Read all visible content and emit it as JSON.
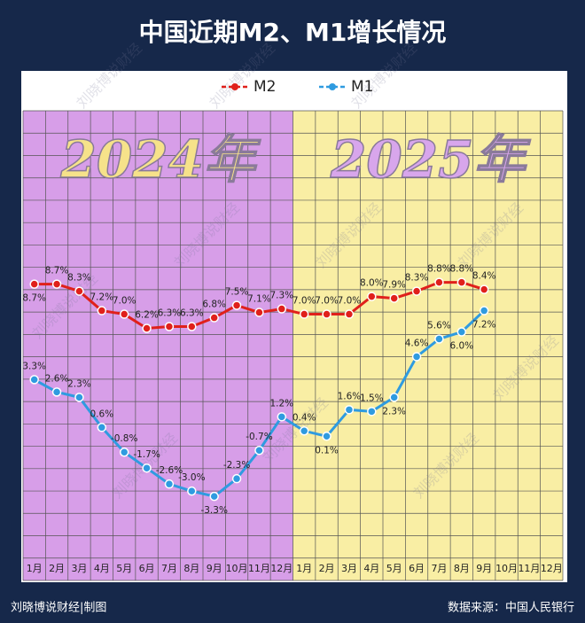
{
  "chart_data": {
    "type": "line",
    "title": "中国近期M2、M1增长情况",
    "categories": [
      "1月",
      "2月",
      "3月",
      "4月",
      "5月",
      "6月",
      "7月",
      "8月",
      "9月",
      "10月",
      "11月",
      "12月",
      "1月",
      "2月",
      "3月",
      "4月",
      "5月",
      "6月",
      "7月",
      "8月",
      "9月",
      "10月",
      "11月",
      "12月"
    ],
    "series": [
      {
        "name": "M2",
        "color": "#e0201b",
        "values": [
          8.7,
          8.7,
          8.3,
          7.2,
          7.0,
          6.2,
          6.3,
          6.3,
          6.8,
          7.5,
          7.1,
          7.3,
          7.0,
          7.0,
          7.0,
          8.0,
          7.9,
          8.3,
          8.8,
          8.8,
          8.4,
          null,
          null,
          null
        ],
        "value_labels": [
          "8.7%",
          "8.7%",
          "8.3%",
          "7.2%",
          "7.0%",
          "6.2%",
          "6.3%",
          "6.3%",
          "6.8%",
          "7.5%",
          "7.1%",
          "7.3%",
          "7.0%",
          "7.0%",
          "7.0%",
          "8.0%",
          "7.9%",
          "8.3%",
          "8.8%",
          "8.8%",
          "8.4%",
          null,
          null,
          null
        ]
      },
      {
        "name": "M1",
        "color": "#2f9be0",
        "values": [
          3.3,
          2.6,
          2.3,
          0.6,
          -0.8,
          -1.7,
          -2.6,
          -3.0,
          -3.3,
          -2.3,
          -0.7,
          1.2,
          0.4,
          0.1,
          1.6,
          1.5,
          2.3,
          4.6,
          5.6,
          6.0,
          7.2,
          null,
          null,
          null
        ],
        "value_labels": [
          "3.3%",
          "2.6%",
          "2.3%",
          "0.6%",
          "-0.8%",
          "-1.7%",
          "-2.6%",
          "-3.0%",
          "-3.3%",
          "-2.3%",
          "-0.7%",
          "1.2%",
          "0.4%",
          "0.1%",
          "1.6%",
          "1.5%",
          "2.3%",
          "4.6%",
          "5.6%",
          "6.0%",
          "7.2%",
          null,
          null,
          null
        ]
      }
    ],
    "ylim": [
      -6.8,
      18.5
    ],
    "period_labels": [
      "2024年",
      "2025年"
    ],
    "credit": "刘晓博说财经|制图",
    "source": "数据来源：中国人民银行",
    "watermark": "刘晓博说财经"
  }
}
